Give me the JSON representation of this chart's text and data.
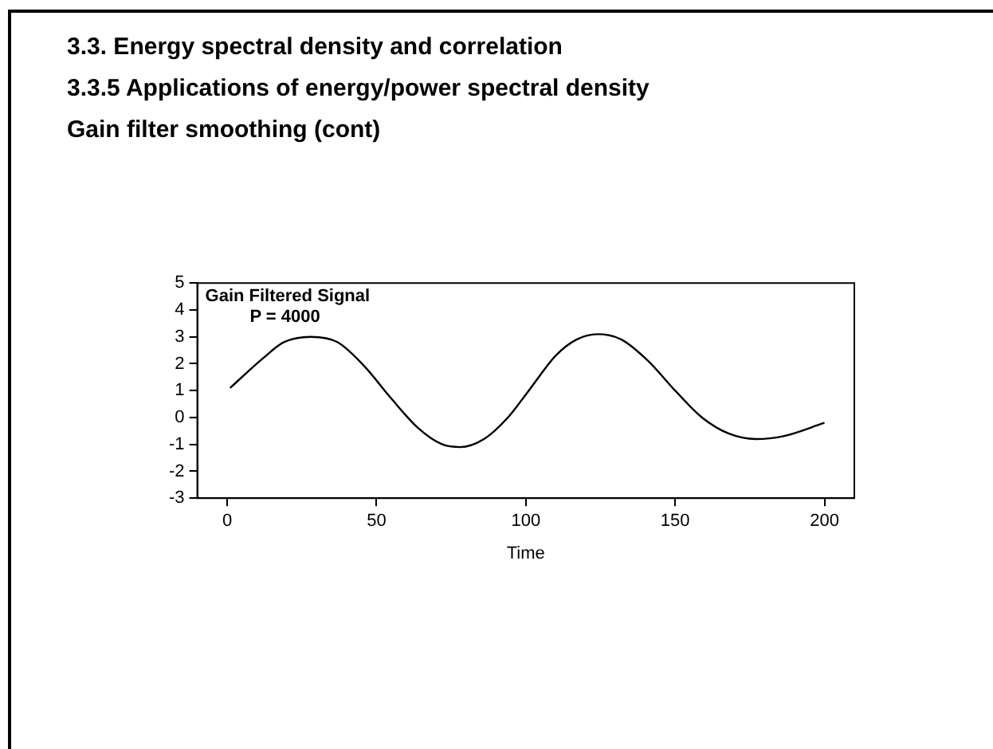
{
  "chart_data": {
    "type": "line",
    "title": "Gain Filtered Signal",
    "subtitle": "P = 4000",
    "xlabel": "Time",
    "annotations": [
      "3.3. Energy spectral density and correlation",
      "3.3.5 Applications of energy/power spectral density",
      "Gain filter smoothing (cont)"
    ],
    "x": [
      1,
      12,
      19,
      28,
      37,
      46,
      55,
      64,
      72,
      78,
      86,
      94,
      101,
      110,
      117,
      124,
      132,
      141,
      150,
      159,
      168,
      177,
      186,
      200
    ],
    "series": [
      {
        "color": "#000000",
        "values": [
          1.1,
          2.2,
          2.8,
          3.0,
          2.8,
          1.9,
          0.7,
          -0.4,
          -1.0,
          -1.1,
          -0.8,
          0.0,
          1.0,
          2.3,
          2.9,
          3.1,
          2.9,
          2.1,
          1.0,
          0.0,
          -0.6,
          -0.8,
          -0.7,
          -0.2
        ]
      }
    ],
    "xlim": [
      -10,
      210
    ],
    "xticks": [
      0,
      50,
      100,
      150,
      200
    ],
    "ylim": [
      -3,
      5
    ],
    "yticks": [
      -3,
      -2,
      -1,
      0,
      1,
      2,
      3,
      4,
      5
    ],
    "grid": false,
    "legend": false,
    "marker": "none",
    "line_style": "solid"
  }
}
